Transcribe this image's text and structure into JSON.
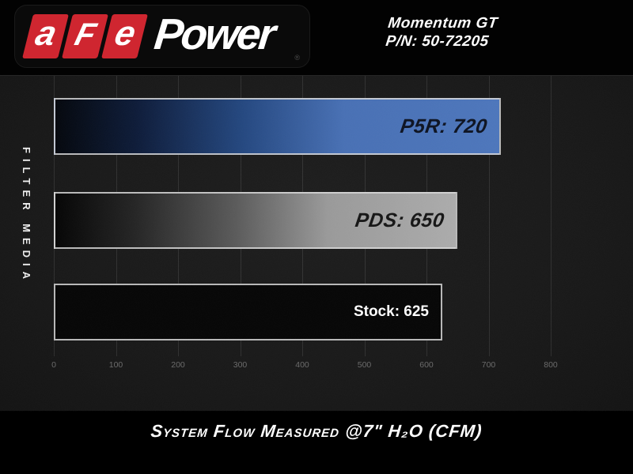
{
  "brand": {
    "letters": [
      "a",
      "F",
      "e"
    ],
    "power": "Power",
    "registered_mark": "®"
  },
  "header": {
    "product_name": "Momentum GT",
    "part_number": "P/N: 50-72205"
  },
  "chart_data": {
    "type": "bar",
    "orientation": "horizontal",
    "title": "System Flow Measured @7\" H₂O (CFM)",
    "ylabel": "FILTER MEDIA",
    "xlabel": "",
    "xlim": [
      0,
      800
    ],
    "x_ticks": [
      0,
      100,
      200,
      300,
      400,
      500,
      600,
      700,
      800
    ],
    "grid": "vertical",
    "legend": "none",
    "categories": [
      "P5R",
      "PDS",
      "Stock"
    ],
    "values": [
      720,
      650,
      625
    ],
    "bars": [
      {
        "category": "P5R",
        "value": 720,
        "label": "P5R: 720",
        "fill": "blue-gradient",
        "bar_color": "#4a72b8",
        "label_style": "racing",
        "label_color": "#0d1322"
      },
      {
        "category": "PDS",
        "value": 650,
        "label": "PDS: 650",
        "fill": "silver-gradient",
        "bar_color": "#ababab",
        "label_style": "racing",
        "label_color": "#161616"
      },
      {
        "category": "Stock",
        "value": 625,
        "label": "Stock: 625",
        "fill": "solid-black",
        "bar_color": "#060606",
        "label_style": "plain",
        "label_color": "#ffffff"
      }
    ]
  },
  "colors": {
    "brand_red": "#cf2630",
    "accent_blue": "#4a72b8",
    "silver": "#ababab",
    "background": "#000000",
    "chart_background": "#1a1a1a",
    "grid_line": "rgba(255,255,255,0.10)",
    "tick_text": "#6a6a6a"
  }
}
